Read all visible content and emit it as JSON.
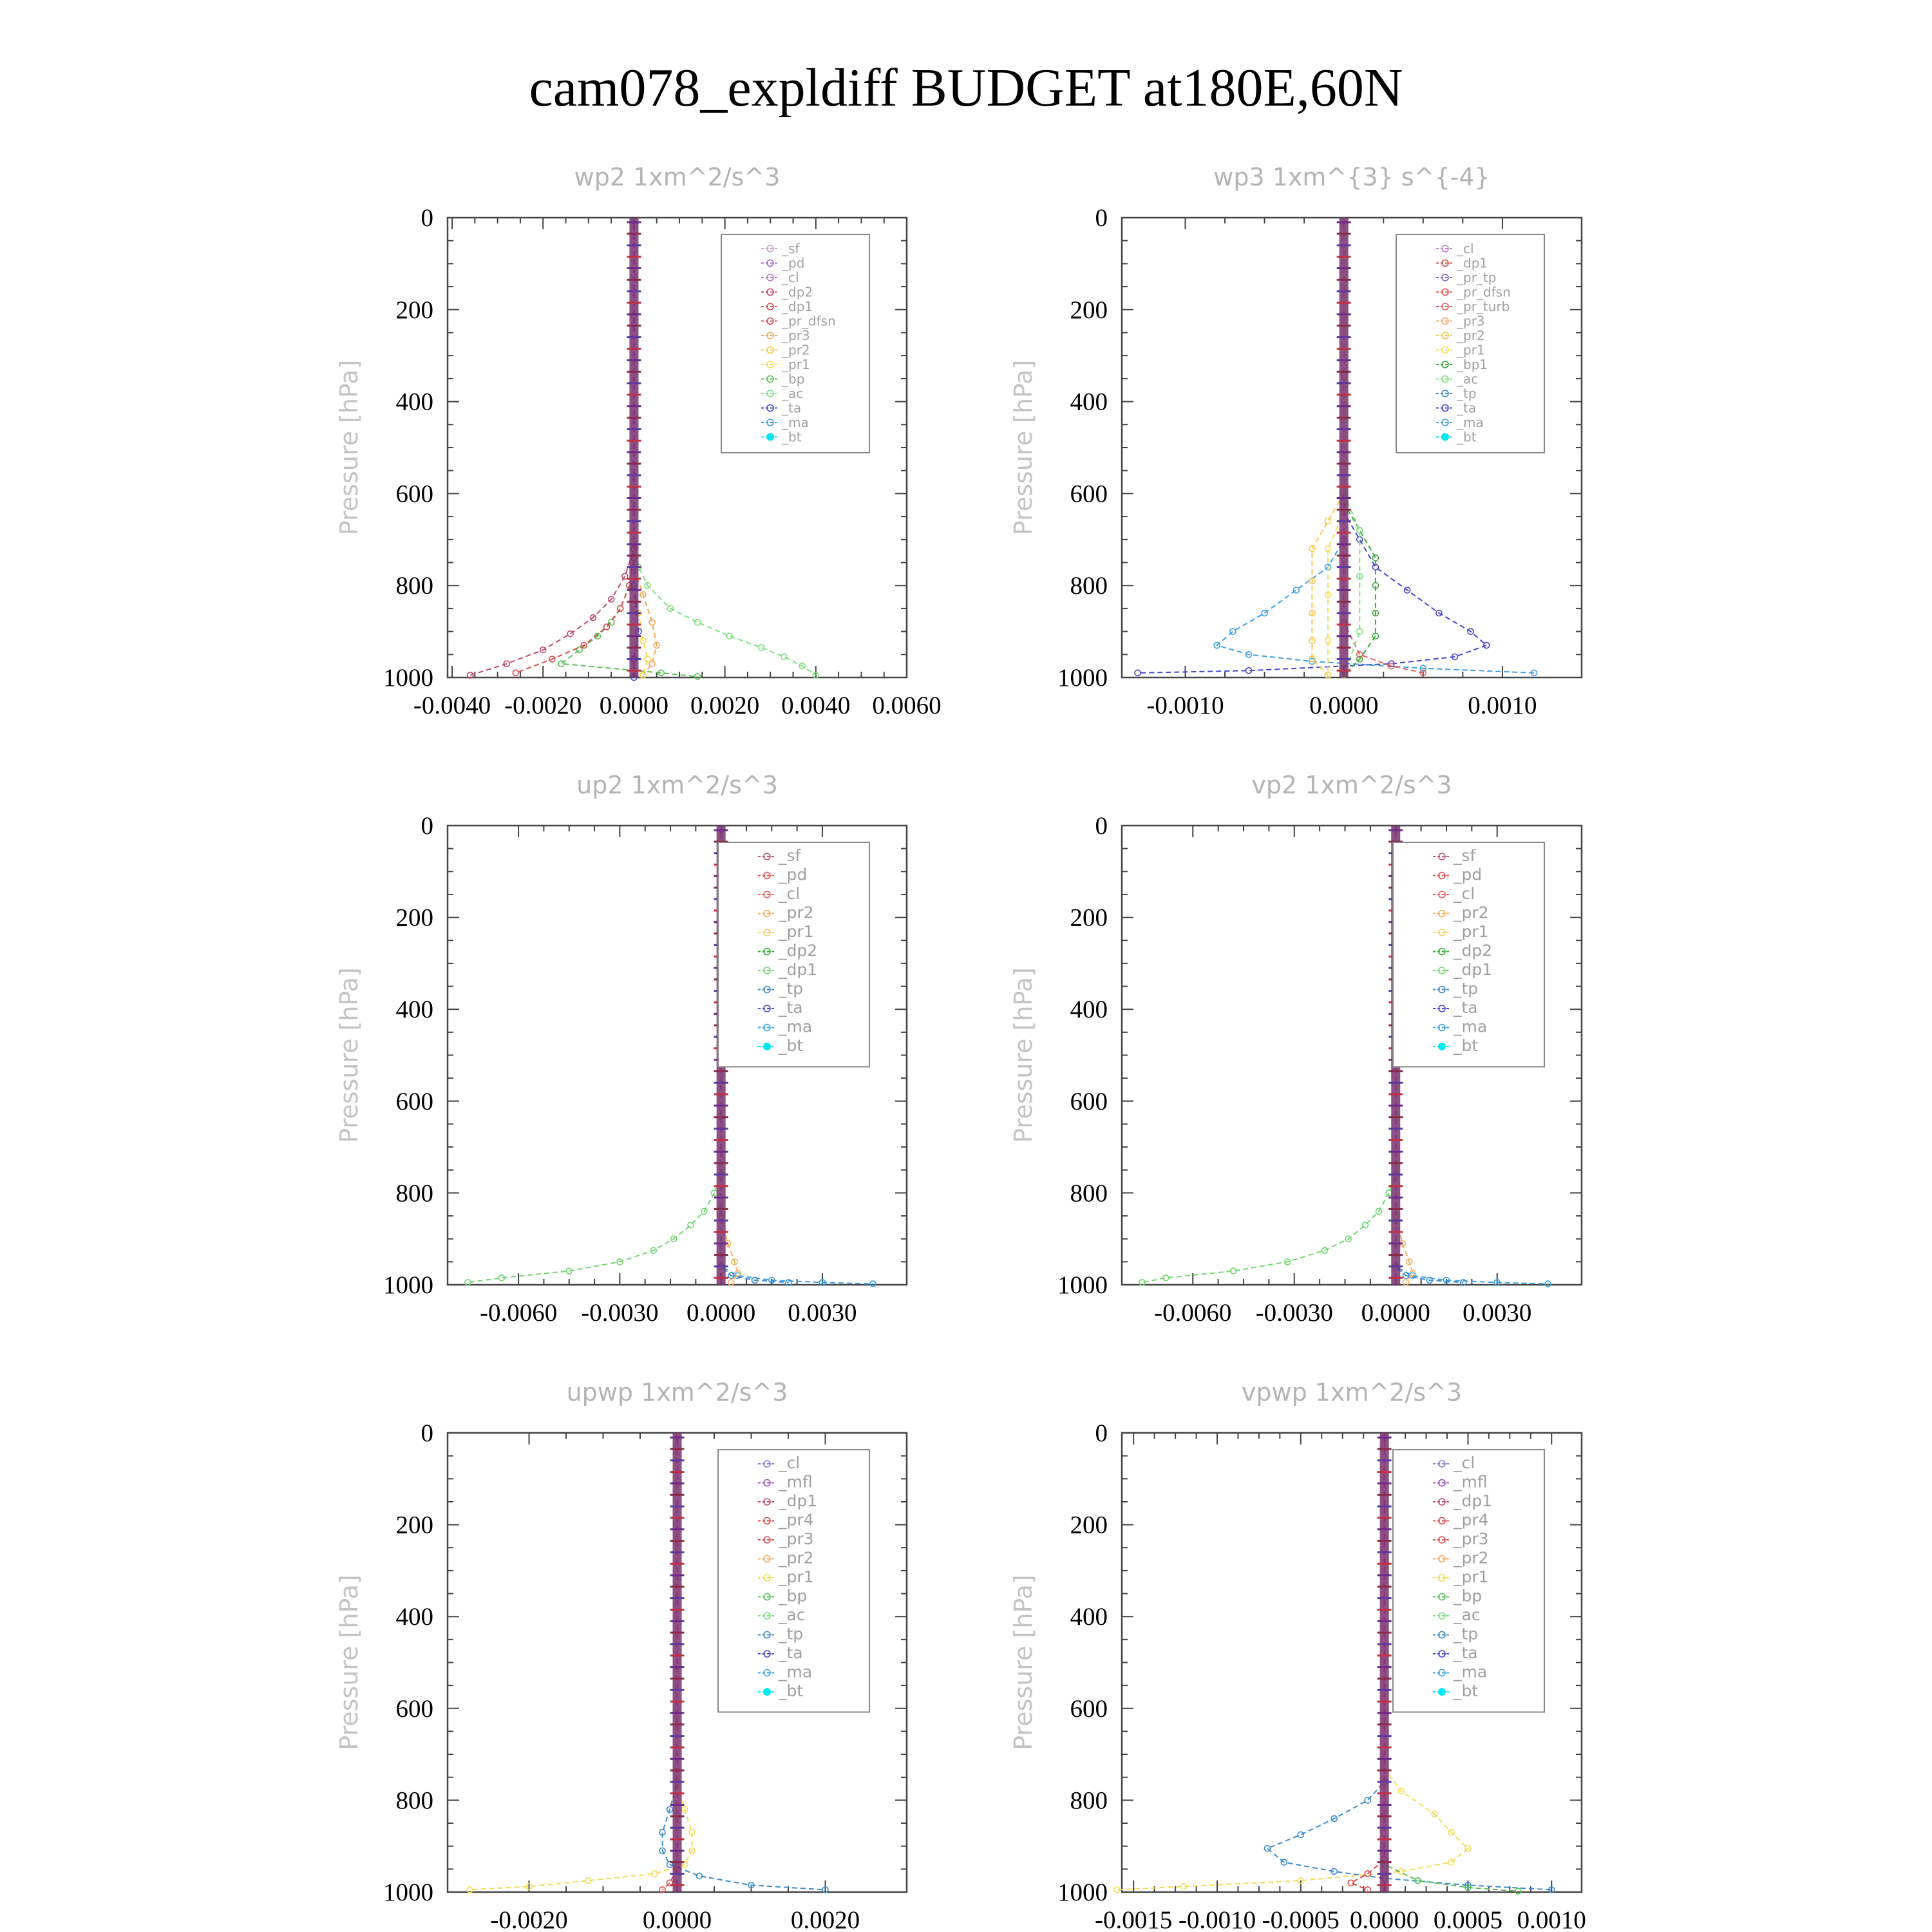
{
  "page": {
    "title": "cam078_expldiff  BUDGET at180E,60N",
    "ylabel": "Pressure [hPa]"
  },
  "colors": {
    "sf": "#c9a0dc",
    "pd": "#9c6ade",
    "cl": "#c07ac9",
    "dp2": "#c04a6a",
    "dp1": "#d94f4f",
    "pr_dfsn": "#e05050",
    "pr3": "#f0a860",
    "pr2": "#f7c64a",
    "pr1": "#f3dc55",
    "bp": "#58c058",
    "ac": "#7ee07e",
    "ta": "#4646d8",
    "ma": "#3ca0e6",
    "bt": "#00e8f0",
    "tp": "#3c8cd0",
    "mfl": "#a050c0",
    "pr4": "#e04848",
    "pr_tp": "#8a6acf",
    "pr_turb": "#e06060",
    "bp1": "#3caa3c",
    "sf_up": "#c0506a",
    "pd_up": "#e05050",
    "cl_up": "#e85a5a",
    "pr2_up": "#f5b060",
    "pr1_up": "#f7d060",
    "dp2_up": "#30b030",
    "dp1_up": "#70d870",
    "cl_up_low": "#9078d8",
    "pd_wp3": "#a07ae0"
  },
  "chart_data": [
    {
      "type": "line",
      "title": "wp2  1xm^2/s^3",
      "ylabel": "Pressure [hPa]",
      "ylim": [
        1000,
        0
      ],
      "yticks": [
        0,
        200,
        400,
        600,
        800,
        1000
      ],
      "xlim": [
        -0.0041,
        0.006
      ],
      "xticks": [
        -0.004,
        -0.002,
        0,
        0.002,
        0.004,
        0.006
      ],
      "xtick_labels": [
        "-0.0040",
        "-0.0020",
        "0.0000",
        "0.0020",
        "0.0040",
        "0.0060"
      ],
      "legend_position": "top-right",
      "legend": [
        "_sf",
        "_pd",
        "_cl",
        "_dp2",
        "_dp1",
        "_pr_dfsn",
        "_pr3",
        "_pr2",
        "_pr1",
        "_bp",
        "_ac",
        "_ta",
        "_ma",
        "_bt"
      ],
      "legend_colors": [
        "sf",
        "pd",
        "cl",
        "dp2",
        "dp1",
        "pr_dfsn",
        "pr3",
        "pr2",
        "pr1",
        "bp",
        "ac",
        "ta",
        "ma",
        "bt"
      ],
      "series": [
        {
          "color": "ac",
          "x": [
            0,
            0,
            0.0001,
            0.0003,
            0.0008,
            0.0014,
            0.0021,
            0.0028,
            0.0033,
            0.0037,
            0.004
          ],
          "y": [
            0,
            700,
            760,
            800,
            850,
            880,
            910,
            935,
            955,
            975,
            995
          ]
        },
        {
          "color": "bp",
          "x": [
            0,
            0,
            -0.0001,
            -0.0003,
            -0.0005,
            -0.0008,
            -0.0012,
            -0.0016,
            0.0006,
            0.0014
          ],
          "y": [
            0,
            740,
            800,
            850,
            880,
            910,
            940,
            970,
            990,
            998
          ]
        },
        {
          "color": "dp2",
          "x": [
            0,
            0,
            -0.0002,
            -0.0005,
            -0.0009,
            -0.0014,
            -0.002,
            -0.0028,
            -0.0036
          ],
          "y": [
            0,
            720,
            780,
            830,
            870,
            905,
            940,
            970,
            995
          ]
        },
        {
          "color": "dp1",
          "x": [
            0,
            0,
            -0.0001,
            -0.0003,
            -0.0006,
            -0.0011,
            -0.0018,
            -0.0026
          ],
          "y": [
            0,
            740,
            800,
            850,
            890,
            930,
            960,
            990
          ]
        },
        {
          "color": "pr3",
          "x": [
            0,
            0,
            0.0002,
            0.0004,
            0.0005,
            0.0004,
            0.0002
          ],
          "y": [
            0,
            760,
            820,
            880,
            930,
            970,
            995
          ]
        },
        {
          "color": "pr1",
          "x": [
            0,
            0,
            0.0001,
            0.0002,
            0.0003,
            0.0002
          ],
          "y": [
            0,
            800,
            860,
            920,
            960,
            995
          ]
        },
        {
          "color": "ta",
          "x": [
            0,
            0,
            0.0001,
            0,
            0
          ],
          "y": [
            0,
            800,
            900,
            960,
            1000
          ]
        }
      ]
    },
    {
      "type": "line",
      "title": "wp3  1xm^{3} s^{-4}",
      "ylabel": "Pressure [hPa]",
      "ylim": [
        1000,
        0
      ],
      "yticks": [
        0,
        200,
        400,
        600,
        800,
        1000
      ],
      "xlim": [
        -0.0014,
        0.0015
      ],
      "xticks": [
        -0.001,
        0,
        0.001
      ],
      "xtick_labels": [
        "-0.0010",
        "0.0000",
        "0.0010"
      ],
      "legend_position": "top-right",
      "legend": [
        "_cl",
        "_dp1",
        "_pr_tp",
        "_pr_dfsn",
        "_pr_turb",
        "_pr3",
        "_pr2",
        "_pr1",
        "_bp1",
        "_ac",
        "_tp",
        "_ta",
        "_ma",
        "_bt"
      ],
      "legend_colors": [
        "cl",
        "dp1",
        "pr_tp",
        "pr_dfsn",
        "pr_turb",
        "pr3",
        "pr2",
        "pr1",
        "bp1",
        "ac",
        "tp",
        "ta",
        "ma",
        "bt"
      ],
      "series": [
        {
          "color": "ma",
          "x": [
            0,
            0,
            -0.0001,
            -0.0003,
            -0.0005,
            -0.0007,
            -0.0008,
            -0.0006,
            -0.0002,
            0.0005,
            0.0012
          ],
          "y": [
            0,
            700,
            760,
            810,
            860,
            900,
            930,
            950,
            965,
            980,
            990
          ]
        },
        {
          "color": "ta",
          "x": [
            0,
            0,
            0.0001,
            0.0002,
            0.0004,
            0.0006,
            0.0008,
            0.0009,
            0.0007,
            0.0003,
            -0.0006,
            -0.0013
          ],
          "y": [
            0,
            640,
            700,
            760,
            810,
            860,
            900,
            930,
            955,
            970,
            985,
            990
          ]
        },
        {
          "color": "bp1",
          "x": [
            0,
            0,
            0.0001,
            0.0002,
            0.0002,
            0.0002,
            0.0002,
            0.0001,
            0
          ],
          "y": [
            0,
            620,
            680,
            740,
            800,
            860,
            910,
            960,
            995
          ]
        },
        {
          "color": "pr2",
          "x": [
            0,
            0,
            -0.0001,
            -0.0002,
            -0.0002,
            -0.0002,
            -0.0002,
            -0.0002,
            -0.0001
          ],
          "y": [
            0,
            600,
            660,
            720,
            790,
            860,
            920,
            960,
            995
          ]
        },
        {
          "color": "pr1",
          "x": [
            0,
            0,
            -0.0001,
            -0.0001,
            -0.0001,
            -0.0001
          ],
          "y": [
            0,
            640,
            720,
            820,
            920,
            995
          ]
        },
        {
          "color": "pr_turb",
          "x": [
            0,
            0,
            0.0001,
            0.0003,
            0.0005
          ],
          "y": [
            0,
            880,
            950,
            975,
            990
          ]
        },
        {
          "color": "ac",
          "x": [
            0,
            0,
            0.0001,
            0.0001,
            0.0001,
            0
          ],
          "y": [
            0,
            600,
            680,
            780,
            900,
            995
          ]
        }
      ]
    },
    {
      "type": "line",
      "title": "up2  1xm^2/s^3",
      "ylabel": "Pressure [hPa]",
      "ylim": [
        1000,
        0
      ],
      "yticks": [
        0,
        200,
        400,
        600,
        800,
        1000
      ],
      "xlim": [
        -0.0081,
        0.0055
      ],
      "xticks": [
        -0.006,
        -0.003,
        0,
        0.003
      ],
      "xtick_labels": [
        "-0.0060",
        "-0.0030",
        "0.0000",
        "0.0030"
      ],
      "legend_position": "top-right",
      "legend": [
        "_sf",
        "_pd",
        "_cl",
        "_pr2",
        "_pr1",
        "_dp2",
        "_dp1",
        "_tp",
        "_ta",
        "_ma",
        "_bt"
      ],
      "legend_colors": [
        "sf_up",
        "pd_up",
        "cl_up",
        "pr2_up",
        "pr1_up",
        "dp2_up",
        "dp1_up",
        "tp",
        "ta",
        "ma",
        "bt"
      ],
      "series": [
        {
          "color": "dp1_up",
          "x": [
            0,
            0,
            -0.0002,
            -0.0005,
            -0.0009,
            -0.0014,
            -0.002,
            -0.003,
            -0.0045,
            -0.0065,
            -0.0075
          ],
          "y": [
            0,
            760,
            800,
            840,
            870,
            900,
            925,
            950,
            970,
            985,
            995
          ]
        },
        {
          "color": "ma",
          "x": [
            0,
            0,
            0.0005,
            0.0015,
            0.003,
            0.0045
          ],
          "y": [
            0,
            960,
            980,
            990,
            995,
            998
          ]
        },
        {
          "color": "pr2_up",
          "x": [
            0,
            0,
            0.0002,
            0.0004,
            0.0005,
            0.0003
          ],
          "y": [
            0,
            850,
            910,
            950,
            975,
            995
          ]
        },
        {
          "color": "tp",
          "x": [
            0,
            0,
            0.0003,
            0.001,
            0.002
          ],
          "y": [
            0,
            960,
            980,
            990,
            995
          ]
        }
      ]
    },
    {
      "type": "line",
      "title": "vp2  1xm^2/s^3",
      "ylabel": "Pressure [hPa]",
      "ylim": [
        1000,
        0
      ],
      "yticks": [
        0,
        200,
        400,
        600,
        800,
        1000
      ],
      "xlim": [
        -0.0081,
        0.0055
      ],
      "xticks": [
        -0.006,
        -0.003,
        0,
        0.003
      ],
      "xtick_labels": [
        "-0.0060",
        "-0.0030",
        "0.0000",
        "0.0030"
      ],
      "legend_position": "top-right",
      "legend": [
        "_sf",
        "_pd",
        "_cl",
        "_pr2",
        "_pr1",
        "_dp2",
        "_dp1",
        "_tp",
        "_ta",
        "_ma",
        "_bt"
      ],
      "legend_colors": [
        "sf_up",
        "pd_up",
        "cl_up",
        "pr2_up",
        "pr1_up",
        "dp2_up",
        "dp1_up",
        "tp",
        "ta",
        "ma",
        "bt"
      ],
      "series": [
        {
          "color": "dp1_up",
          "x": [
            0,
            0,
            -0.0002,
            -0.0005,
            -0.0009,
            -0.0014,
            -0.0021,
            -0.0032,
            -0.0048,
            -0.0068,
            -0.0075
          ],
          "y": [
            0,
            760,
            800,
            840,
            870,
            900,
            925,
            950,
            970,
            985,
            995
          ]
        },
        {
          "color": "ma",
          "x": [
            0,
            0,
            0.0005,
            0.0015,
            0.003,
            0.0045
          ],
          "y": [
            0,
            960,
            980,
            990,
            995,
            998
          ]
        },
        {
          "color": "pr2_up",
          "x": [
            0,
            0,
            0.0002,
            0.0004,
            0.0005,
            0.0003
          ],
          "y": [
            0,
            850,
            910,
            950,
            975,
            995
          ]
        },
        {
          "color": "tp",
          "x": [
            0,
            0,
            0.0003,
            0.001,
            0.002
          ],
          "y": [
            0,
            960,
            980,
            990,
            995
          ]
        }
      ]
    },
    {
      "type": "line",
      "title": "upwp  1xm^2/s^3",
      "ylabel": "Pressure [hPa]",
      "ylim": [
        1000,
        0
      ],
      "yticks": [
        0,
        200,
        400,
        600,
        800,
        1000
      ],
      "xlim": [
        -0.0031,
        0.0031
      ],
      "xticks": [
        -0.002,
        0,
        0.002
      ],
      "xtick_labels": [
        "-0.0020",
        "0.0000",
        "0.0020"
      ],
      "legend_position": "top-right",
      "legend": [
        "_cl",
        "_mfl",
        "_dp1",
        "_pr4",
        "_pr3",
        "_pr2",
        "_pr1",
        "_bp",
        "_ac",
        "_tp",
        "_ta",
        "_ma",
        "_bt"
      ],
      "legend_colors": [
        "cl_up_low",
        "mfl",
        "dp2",
        "pr4",
        "pr_dfsn",
        "pr3",
        "pr1",
        "bp",
        "ac",
        "tp",
        "ta",
        "ma",
        "bt"
      ],
      "series": [
        {
          "color": "tp",
          "x": [
            0,
            0,
            -0.0001,
            -0.0002,
            -0.0002,
            -0.0001,
            0.0003,
            0.001,
            0.002
          ],
          "y": [
            0,
            760,
            820,
            870,
            910,
            940,
            965,
            985,
            995
          ]
        },
        {
          "color": "pr1",
          "x": [
            0,
            0,
            0.0001,
            0.0002,
            0.0002,
            0.0001,
            -0.0003,
            -0.0012,
            -0.002,
            -0.0028
          ],
          "y": [
            0,
            760,
            820,
            870,
            910,
            940,
            960,
            975,
            988,
            995
          ]
        },
        {
          "color": "pr4",
          "x": [
            0,
            0,
            -0.0001,
            -0.0002
          ],
          "y": [
            0,
            950,
            980,
            995
          ]
        }
      ]
    },
    {
      "type": "line",
      "title": "vpwp  1xm^2/s^3",
      "ylabel": "Pressure [hPa]",
      "ylim": [
        1000,
        0
      ],
      "yticks": [
        0,
        200,
        400,
        600,
        800,
        1000
      ],
      "xlim": [
        -0.00157,
        0.00118
      ],
      "xticks": [
        -0.0015,
        -0.001,
        -0.0005,
        0,
        0.0005,
        0.001
      ],
      "xtick_labels": [
        "-0.0015",
        "-0.0010",
        "-0.0005",
        "0.0000",
        "0.0005",
        "0.0010"
      ],
      "legend_position": "top-right",
      "legend": [
        "_cl",
        "_mfl",
        "_dp1",
        "_pr4",
        "_pr3",
        "_pr2",
        "_pr1",
        "_bp",
        "_ac",
        "_tp",
        "_ta",
        "_ma",
        "_bt"
      ],
      "legend_colors": [
        "cl_up_low",
        "mfl",
        "dp2",
        "pr4",
        "pr_dfsn",
        "pr3",
        "pr1",
        "bp",
        "ac",
        "tp",
        "ta",
        "ma",
        "bt"
      ],
      "series": [
        {
          "color": "tp",
          "x": [
            0,
            0,
            -0.0001,
            -0.0003,
            -0.0005,
            -0.0007,
            -0.0006,
            -0.0003,
            0,
            0.0005,
            0.001
          ],
          "y": [
            0,
            760,
            800,
            840,
            875,
            905,
            935,
            955,
            970,
            985,
            995
          ]
        },
        {
          "color": "pr1",
          "x": [
            0,
            0,
            0.0001,
            0.0003,
            0.0004,
            0.0005,
            0.0004,
            0.0001,
            -0.0005,
            -0.0012,
            -0.0016
          ],
          "y": [
            0,
            730,
            780,
            830,
            870,
            905,
            935,
            955,
            975,
            988,
            995
          ]
        },
        {
          "color": "bp",
          "x": [
            0,
            0,
            0.0002,
            0.0005,
            0.0008
          ],
          "y": [
            0,
            940,
            975,
            990,
            998
          ]
        },
        {
          "color": "pr4",
          "x": [
            0,
            0,
            -0.0001,
            -0.0002,
            -0.0001
          ],
          "y": [
            0,
            930,
            960,
            980,
            995
          ]
        }
      ]
    }
  ]
}
